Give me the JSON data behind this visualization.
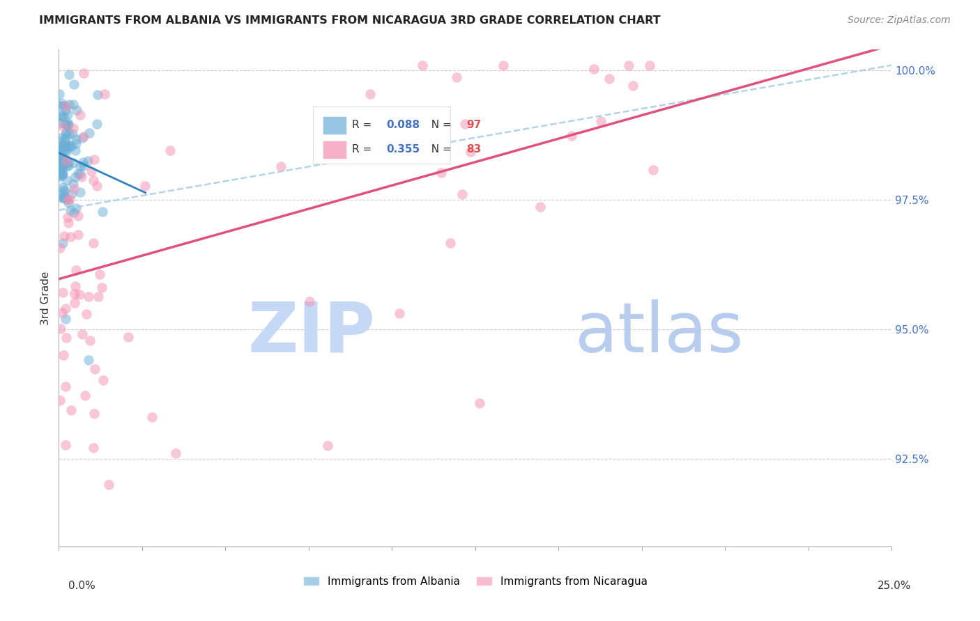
{
  "title": "IMMIGRANTS FROM ALBANIA VS IMMIGRANTS FROM NICARAGUA 3RD GRADE CORRELATION CHART",
  "source": "Source: ZipAtlas.com",
  "ylabel": "3rd Grade",
  "yaxis_labels": [
    "100.0%",
    "97.5%",
    "95.0%",
    "92.5%"
  ],
  "yaxis_values": [
    1.0,
    0.975,
    0.95,
    0.925
  ],
  "xmin": 0.0,
  "xmax": 0.25,
  "ymin": 0.908,
  "ymax": 1.004,
  "R_albania": 0.088,
  "N_albania": 97,
  "R_nicaragua": 0.355,
  "N_nicaragua": 83,
  "color_albania": "#6baed6",
  "color_nicaragua": "#f48fb1",
  "color_trendline_albania": "#3182bd",
  "color_trendline_nicaragua": "#e05080",
  "color_trendline_dashed": "#9ecae1",
  "watermark_zip_color": "#c8d8f0",
  "watermark_atlas_color": "#b8c8e0",
  "background_color": "#ffffff",
  "alb_trend_x0": 0.0,
  "alb_trend_y0": 0.983,
  "alb_trend_x1": 0.025,
  "alb_trend_y1": 0.985,
  "nic_trend_x0": 0.0,
  "nic_trend_y0": 0.963,
  "nic_trend_x1": 0.25,
  "nic_trend_y1": 1.001,
  "dash_trend_x0": 0.0,
  "dash_trend_y0": 0.973,
  "dash_trend_x1": 0.25,
  "dash_trend_y1": 1.001,
  "legend_R_alb": "0.088",
  "legend_N_alb": "97",
  "legend_R_nic": "0.355",
  "legend_N_nic": "83",
  "color_R_alb": "#4472c4",
  "color_N_alb": "#e05050",
  "color_R_nic": "#4472c4",
  "color_N_nic": "#e05050"
}
